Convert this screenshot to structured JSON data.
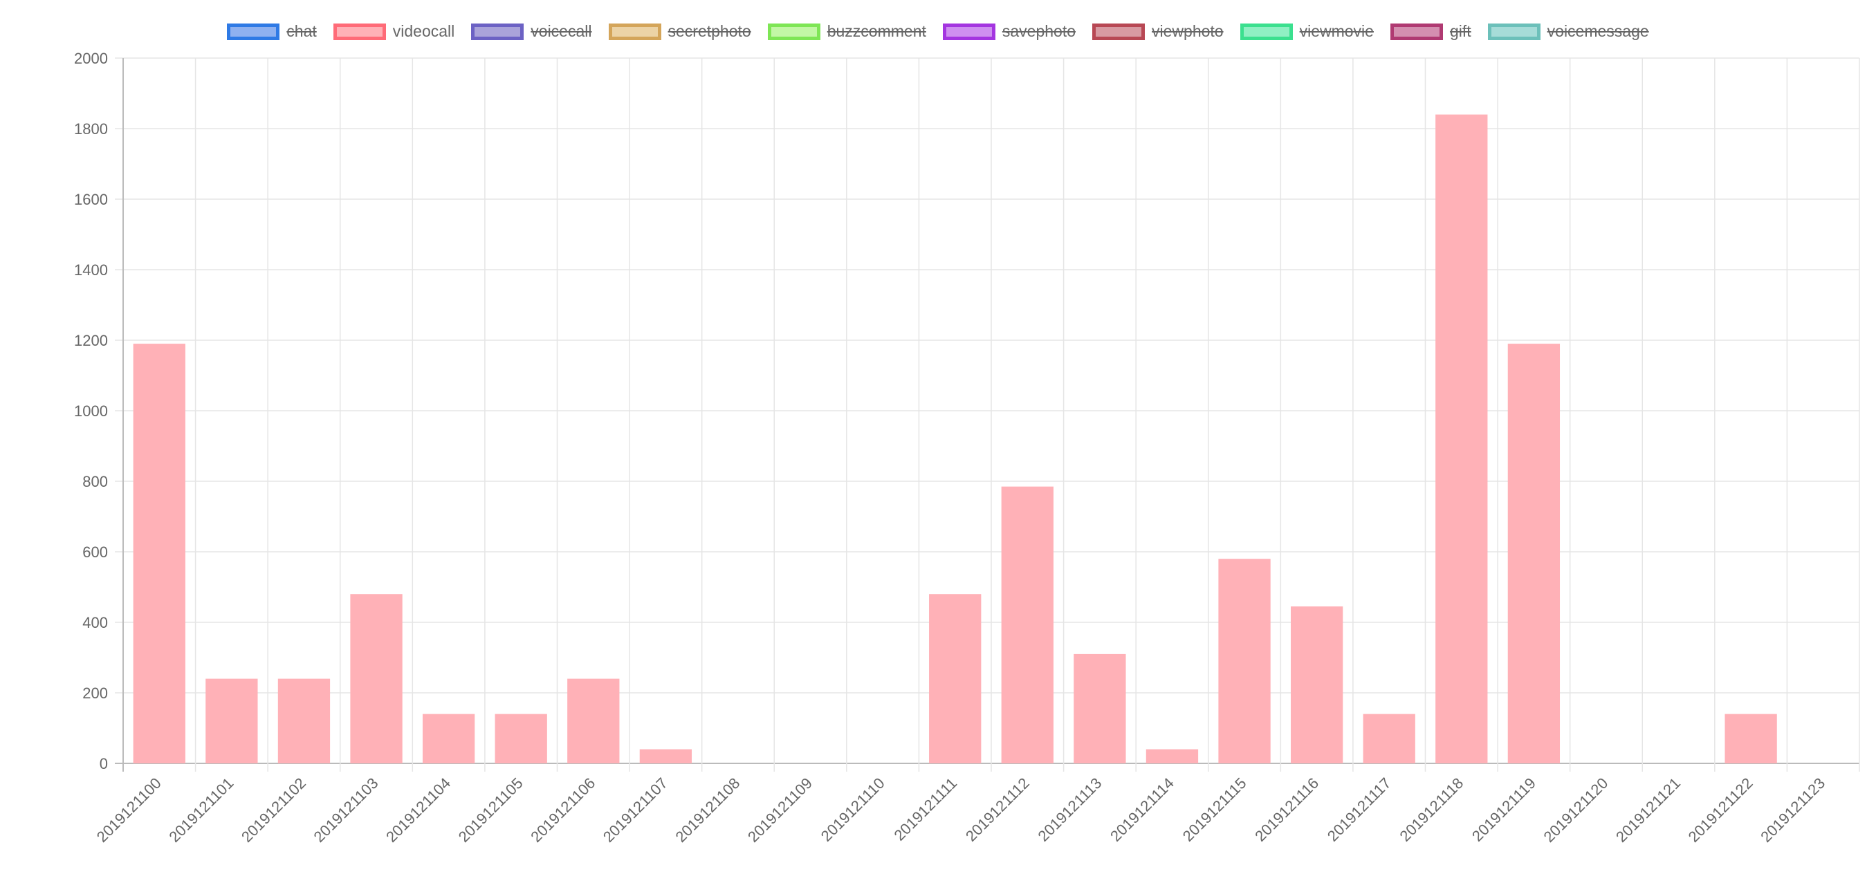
{
  "legend": {
    "items": [
      {
        "label": "chat",
        "fill": "#8fb1f0",
        "border": "#2f7ae5",
        "hidden": true
      },
      {
        "label": "videocall",
        "fill": "#ffb1b7",
        "border": "#ff6b78",
        "hidden": false
      },
      {
        "label": "voicecall",
        "fill": "#aaa3da",
        "border": "#6c62c4",
        "hidden": true
      },
      {
        "label": "secretphoto",
        "fill": "#ecd3a6",
        "border": "#d4a55a",
        "hidden": true
      },
      {
        "label": "buzzcomment",
        "fill": "#c2f7a5",
        "border": "#7ee655",
        "hidden": true
      },
      {
        "label": "savephoto",
        "fill": "#cf8ff0",
        "border": "#a435e0",
        "hidden": true
      },
      {
        "label": "viewphoto",
        "fill": "#d89aa2",
        "border": "#b84854",
        "hidden": true
      },
      {
        "label": "viewmovie",
        "fill": "#8ff0c3",
        "border": "#3be08f",
        "hidden": true
      },
      {
        "label": "gift",
        "fill": "#d48fb0",
        "border": "#b03a72",
        "hidden": true
      },
      {
        "label": "voicemessage",
        "fill": "#a6dcd8",
        "border": "#6cc0ba",
        "hidden": true
      }
    ]
  },
  "chart_data": {
    "type": "bar",
    "categories": [
      "2019121100",
      "2019121101",
      "2019121102",
      "2019121103",
      "2019121104",
      "2019121105",
      "2019121106",
      "2019121107",
      "2019121108",
      "2019121109",
      "2019121110",
      "2019121111",
      "2019121112",
      "2019121113",
      "2019121114",
      "2019121115",
      "2019121116",
      "2019121117",
      "2019121118",
      "2019121119",
      "2019121120",
      "2019121121",
      "2019121122",
      "2019121123"
    ],
    "series": [
      {
        "name": "videocall",
        "color": "#ffb1b7",
        "values": [
          1190,
          240,
          240,
          480,
          140,
          140,
          240,
          40,
          0,
          0,
          0,
          480,
          785,
          310,
          40,
          580,
          445,
          140,
          1840,
          1190,
          0,
          0,
          140,
          0
        ]
      }
    ],
    "ylim": [
      0,
      2000
    ],
    "yticks": [
      0,
      200,
      400,
      600,
      800,
      1000,
      1200,
      1400,
      1600,
      1800,
      2000
    ],
    "grid": true,
    "legend_position": "top",
    "title": "",
    "xlabel": "",
    "ylabel": "",
    "colors": {
      "grid": "#e5e5e5",
      "axis": "#bbbbbb",
      "tick_text": "#666666"
    }
  }
}
